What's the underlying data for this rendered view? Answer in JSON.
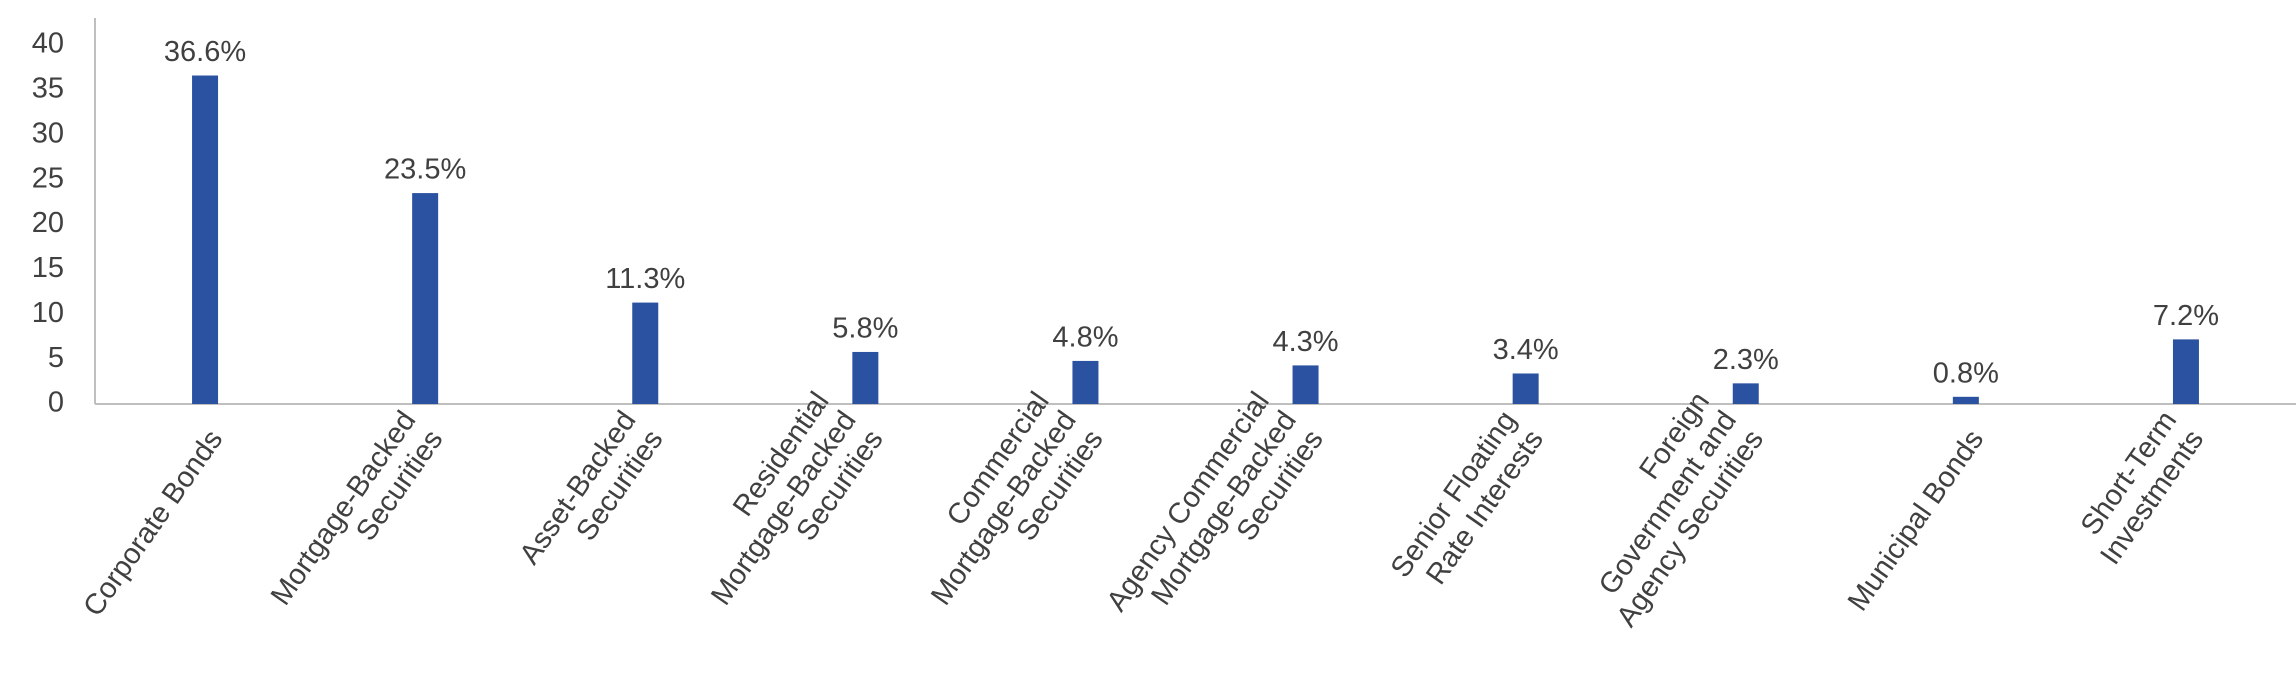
{
  "chart_data": {
    "type": "bar",
    "categories": [
      [
        "Corporate Bonds"
      ],
      [
        "Mortgage-Backed",
        "Securities"
      ],
      [
        "Asset-Backed",
        "Securities"
      ],
      [
        "Residential",
        "Mortgage-Backed",
        "Securities"
      ],
      [
        "Commercial",
        "Mortgage-Backed",
        "Securities"
      ],
      [
        "Agency Commercial",
        "Mortgage-Backed",
        "Securities"
      ],
      [
        "Senior Floating",
        "Rate Interests"
      ],
      [
        "Foreign",
        "Government and",
        "Agency Securities"
      ],
      [
        "Municipal Bonds"
      ],
      [
        "Short-Term",
        "Investments"
      ]
    ],
    "values": [
      36.6,
      23.5,
      11.3,
      5.8,
      4.8,
      4.3,
      3.4,
      2.3,
      0.8,
      7.2
    ],
    "value_labels": [
      "36.6%",
      "23.5%",
      "11.3%",
      "5.8%",
      "4.8%",
      "4.3%",
      "3.4%",
      "2.3%",
      "0.8%",
      "7.2%"
    ],
    "color": "#2b51a1",
    "ylim": [
      0,
      40
    ],
    "yticks": [
      0,
      5,
      10,
      15,
      20,
      25,
      30,
      35,
      40
    ],
    "grid": false
  }
}
